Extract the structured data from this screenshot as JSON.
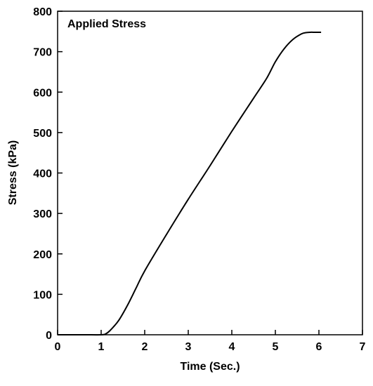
{
  "chart_data": {
    "type": "line",
    "title": "",
    "annotation": "Applied Stress",
    "xlabel": "Time (Sec.)",
    "ylabel": "Stress (kPa)",
    "xlim": [
      0,
      7
    ],
    "ylim": [
      0,
      800
    ],
    "xticks": [
      0,
      1,
      2,
      3,
      4,
      5,
      6,
      7
    ],
    "yticks": [
      0,
      100,
      200,
      300,
      400,
      500,
      600,
      700,
      800
    ],
    "grid": false,
    "legend": "none",
    "line_color": "#000000",
    "series": [
      {
        "x": [
          0.0,
          0.6,
          1.0,
          1.1,
          1.2,
          1.4,
          1.6,
          1.8,
          2.0,
          2.5,
          3.0,
          3.5,
          4.0,
          4.5,
          4.8,
          5.0,
          5.2,
          5.4,
          5.6,
          5.7,
          5.8,
          5.9,
          6.0,
          6.05
        ],
        "y": [
          0,
          0,
          0,
          2,
          10,
          35,
          72,
          115,
          158,
          248,
          335,
          418,
          503,
          585,
          634,
          675,
          707,
          730,
          744,
          747,
          748,
          748,
          748,
          748
        ]
      }
    ]
  }
}
